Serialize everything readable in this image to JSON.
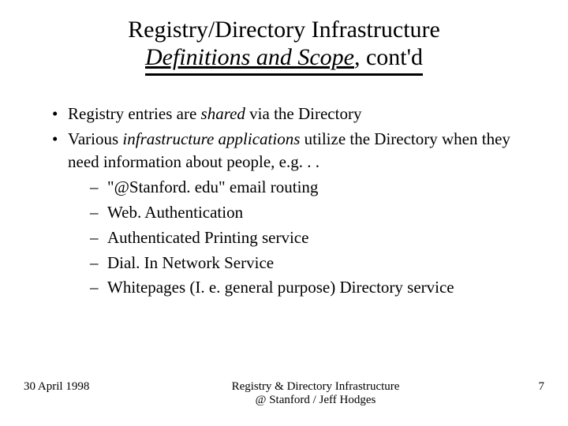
{
  "title": {
    "line1": "Registry/Directory Infrastructure",
    "line2_plain": "Definitions and Scope",
    "line2_suffix": ", cont'd",
    "fontsize": 30,
    "underline_thickness": 3,
    "color": "#000000"
  },
  "body": {
    "fontsize": 21,
    "color": "#000000",
    "bullets": [
      {
        "pre": "Registry entries are ",
        "em": "shared",
        "post": " via the Directory"
      },
      {
        "pre": "Various ",
        "em": "infrastructure applications",
        "post": " utilize the Directory when they need information about people, e.g. . .",
        "sub": [
          "\"@Stanford. edu\" email routing",
          "Web. Authentication",
          "Authenticated Printing service",
          "Dial. In Network Service",
          "Whitepages (I. e. general purpose) Directory service"
        ]
      }
    ]
  },
  "footer": {
    "date": "30 April 1998",
    "center_line1": "Registry & Directory Infrastructure",
    "center_line2": "@ Stanford / Jeff Hodges",
    "page": "7",
    "fontsize": 15
  },
  "background_color": "#ffffff"
}
